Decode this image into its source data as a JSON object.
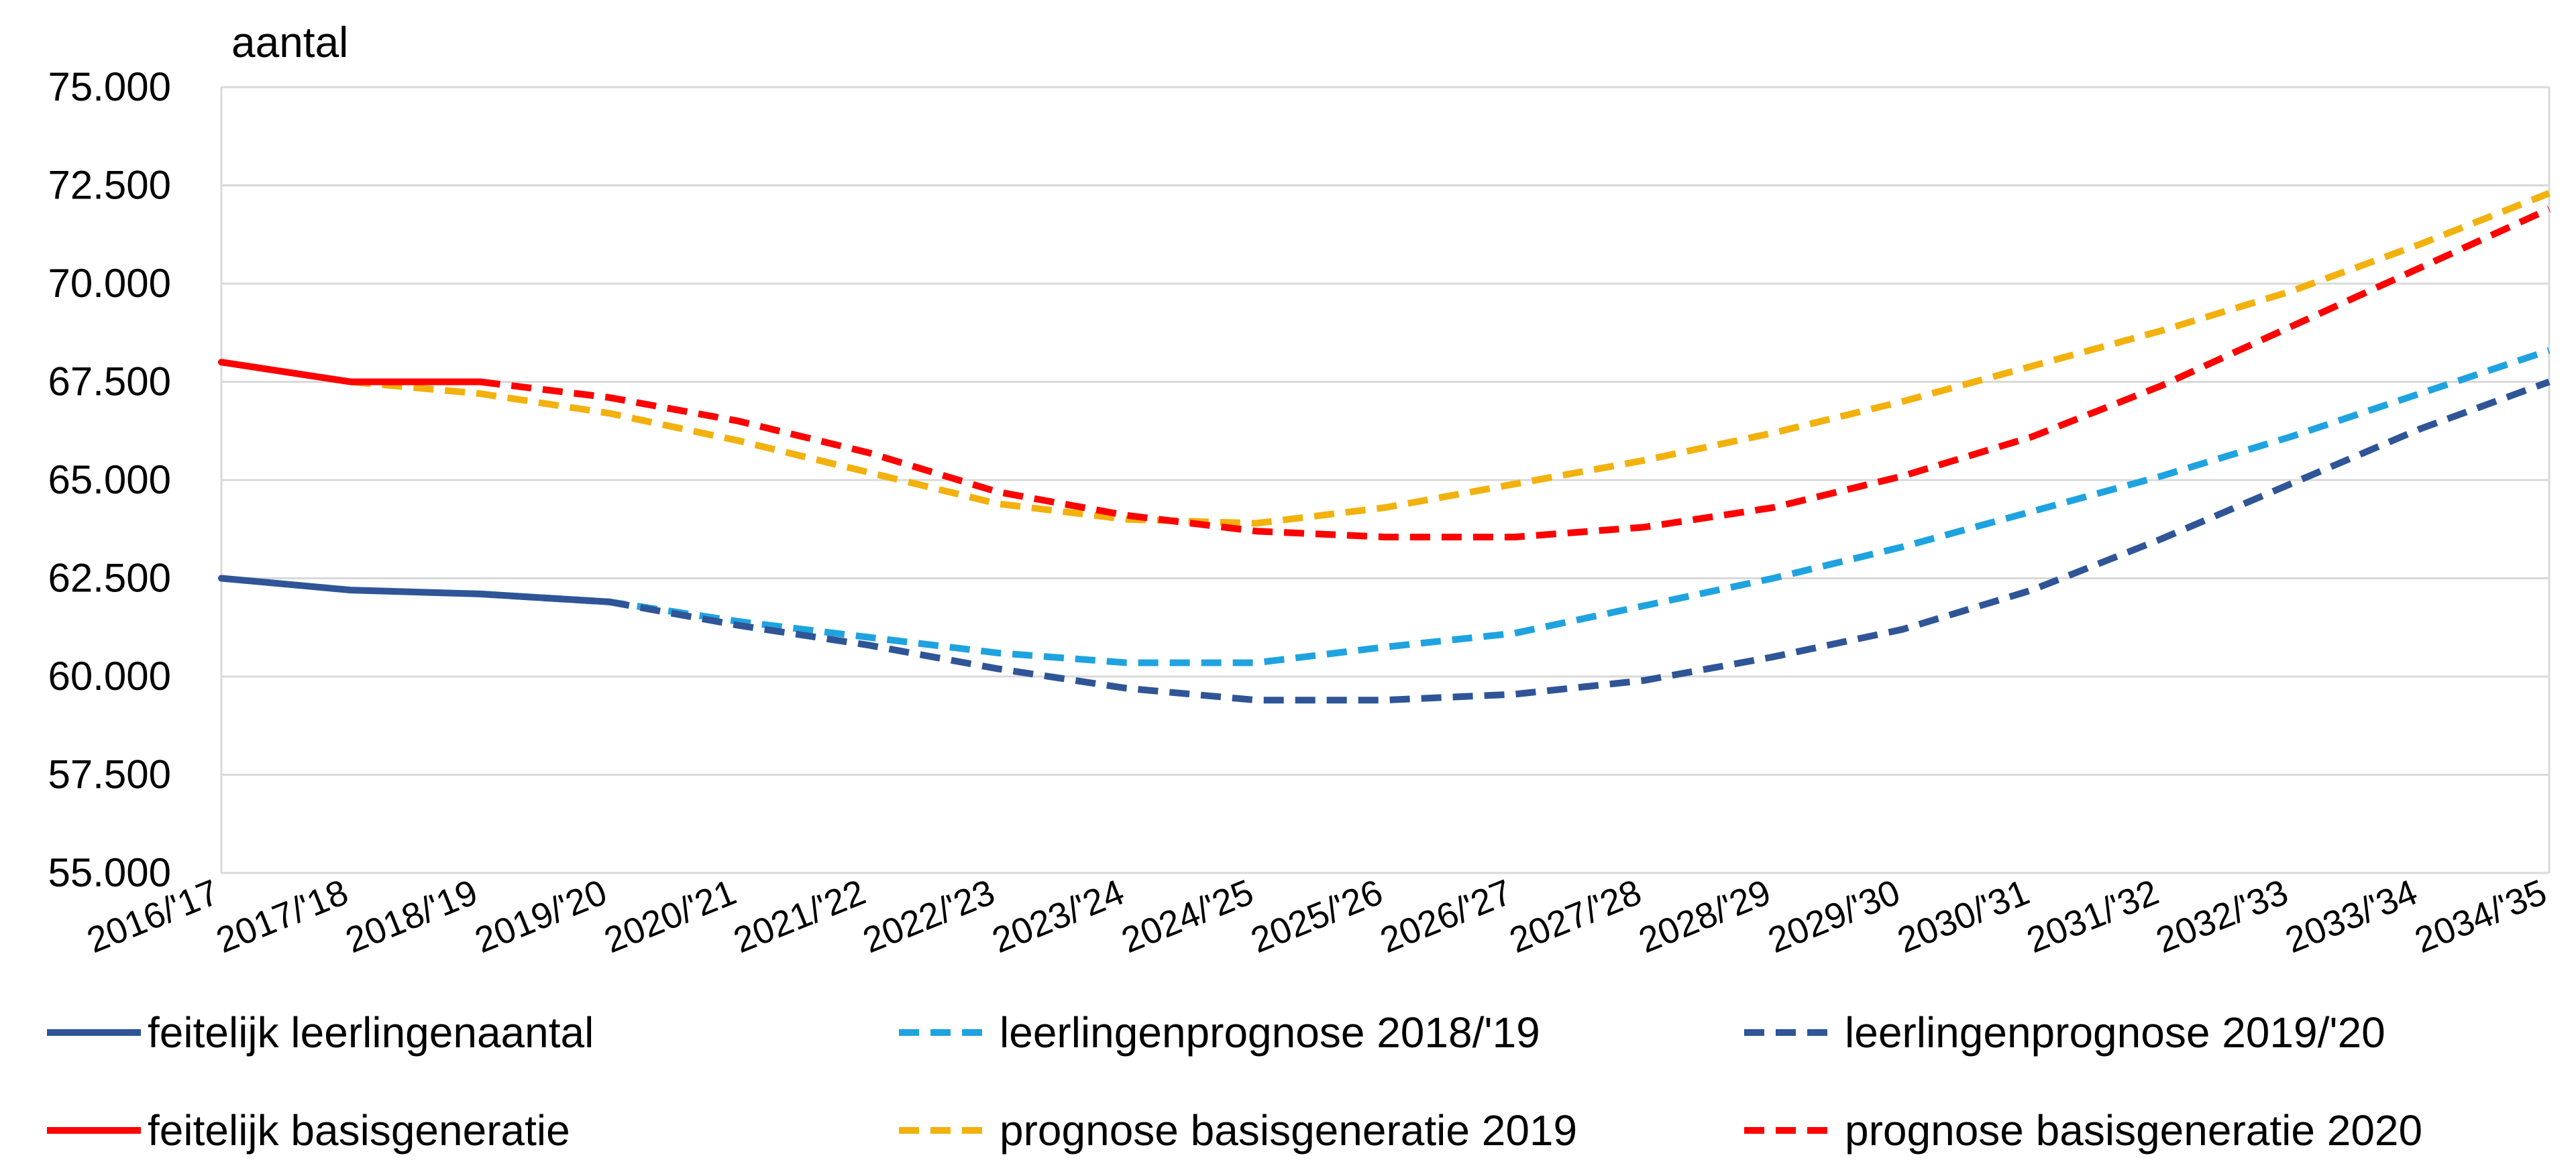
{
  "chart_data": {
    "type": "line",
    "ylabel": "aantal",
    "ylim": [
      55000,
      75000
    ],
    "y_ticks": [
      55000,
      57500,
      60000,
      62500,
      65000,
      67500,
      70000,
      72500,
      75000
    ],
    "y_tick_labels": [
      "55.000",
      "57.500",
      "60.000",
      "62.500",
      "65.000",
      "67.500",
      "70.000",
      "72.500",
      "75.000"
    ],
    "grid": true,
    "legend_position": "bottom",
    "categories": [
      "2016/'17",
      "2017/'18",
      "2018/'19",
      "2019/'20",
      "2020/'21",
      "2021/'22",
      "2022/'23",
      "2023/'24",
      "2024/'25",
      "2025/'26",
      "2026/'27",
      "2027/'28",
      "2028/'29",
      "2029/'30",
      "2030/'31",
      "2031/'32",
      "2032/'33",
      "2033/'34",
      "2034/'35"
    ],
    "series": [
      {
        "name": "feitelijk leerlingenaantal",
        "color": "#2f5597",
        "dash": "solid",
        "values": [
          62500,
          62200,
          62100,
          61900,
          null,
          null,
          null,
          null,
          null,
          null,
          null,
          null,
          null,
          null,
          null,
          null,
          null,
          null,
          null
        ]
      },
      {
        "name": "leerlingenprognose 2018/'19",
        "color": "#1fa3e0",
        "dash": "dashed",
        "values": [
          null,
          null,
          62100,
          61900,
          61400,
          61000,
          60600,
          60350,
          60350,
          60750,
          61100,
          61800,
          62500,
          63300,
          64200,
          65100,
          66100,
          67200,
          68300
        ]
      },
      {
        "name": "leerlingenprognose 2019/'20",
        "color": "#2f5597",
        "dash": "dashed",
        "values": [
          null,
          null,
          null,
          61900,
          61300,
          60800,
          60200,
          59700,
          59400,
          59400,
          59550,
          59900,
          60500,
          61200,
          62200,
          63500,
          64900,
          66300,
          67500
        ]
      },
      {
        "name": "feitelijk basisgeneratie",
        "color": "#ff0000",
        "dash": "solid",
        "values": [
          68000,
          67500,
          67500,
          null,
          null,
          null,
          null,
          null,
          null,
          null,
          null,
          null,
          null,
          null,
          null,
          null,
          null,
          null,
          null
        ]
      },
      {
        "name": "prognose basisgeneratie 2019",
        "color": "#f2b10c",
        "dash": "dashed",
        "values": [
          null,
          67500,
          67200,
          66700,
          66000,
          65200,
          64400,
          64000,
          63900,
          64300,
          64900,
          65500,
          66200,
          67000,
          67900,
          68800,
          69800,
          71000,
          72300
        ]
      },
      {
        "name": "prognose basisgeneratie 2020",
        "color": "#ff0000",
        "dash": "dashed",
        "values": [
          null,
          null,
          67500,
          67100,
          66500,
          65700,
          64700,
          64100,
          63700,
          63550,
          63550,
          63800,
          64300,
          65100,
          66100,
          67400,
          68900,
          70400,
          71900
        ]
      }
    ]
  }
}
